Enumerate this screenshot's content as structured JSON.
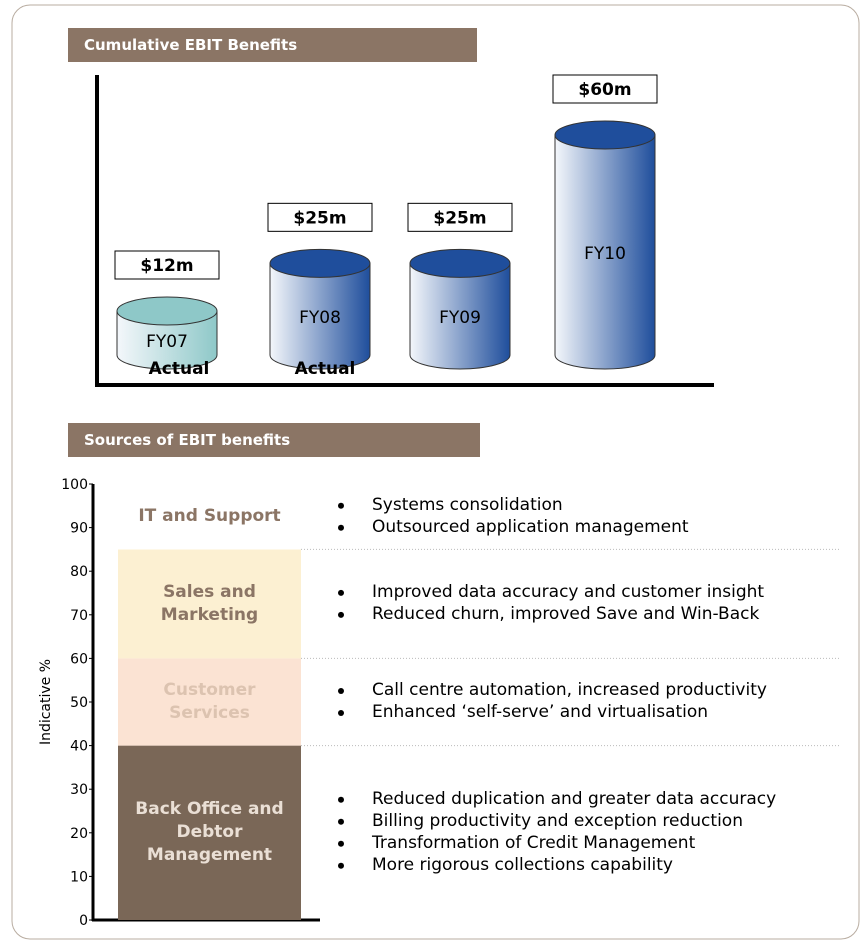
{
  "chart_data": [
    {
      "type": "cylinder",
      "title": "Cumulative EBIT Benefits",
      "categories": [
        "FY07",
        "FY08",
        "FY09",
        "FY10"
      ],
      "values": [
        12,
        25,
        25,
        60
      ],
      "value_labels": [
        "$12m",
        "$25m",
        "$25m",
        "$60m"
      ],
      "sublabels": [
        "Actual",
        "Actual",
        null,
        null
      ],
      "colors": [
        "#8ec8c8",
        "#1f4e9c",
        "#1f4e9c",
        "#1f4e9c"
      ]
    },
    {
      "type": "stacked_bar",
      "title": "Sources of EBIT benefits",
      "ylabel": "Indicative %",
      "ylim": [
        0,
        100
      ],
      "yticks": [
        0,
        10,
        20,
        30,
        40,
        50,
        60,
        70,
        80,
        90,
        100
      ],
      "series": [
        {
          "name": "Back Office and Debtor Management",
          "color": "#7a6757",
          "text_color": "#eadfd5",
          "values": [
            40
          ],
          "bullets": [
            "Reduced duplication and greater data accuracy",
            "Billing productivity and exception reduction",
            "Transformation of Credit Management",
            "More rigorous collections capability"
          ]
        },
        {
          "name": "Customer Services",
          "color": "#fbe3d3",
          "text_color": "#dcc3b0",
          "values": [
            20
          ],
          "bullets": [
            "Call centre automation, increased productivity",
            "Enhanced ‘self-serve’ and virtualisation"
          ]
        },
        {
          "name": "Sales and Marketing",
          "color": "#fcf0d2",
          "text_color": "#8b7565",
          "values": [
            25
          ],
          "bullets": [
            "Improved data accuracy and customer insight",
            "Reduced churn, improved Save and Win-Back"
          ]
        },
        {
          "name": "IT and Support",
          "color": "#ffffff",
          "text_color": "#8b7565",
          "values": [
            15
          ],
          "bullets": [
            "Systems consolidation",
            "Outsourced application management"
          ]
        }
      ]
    }
  ]
}
